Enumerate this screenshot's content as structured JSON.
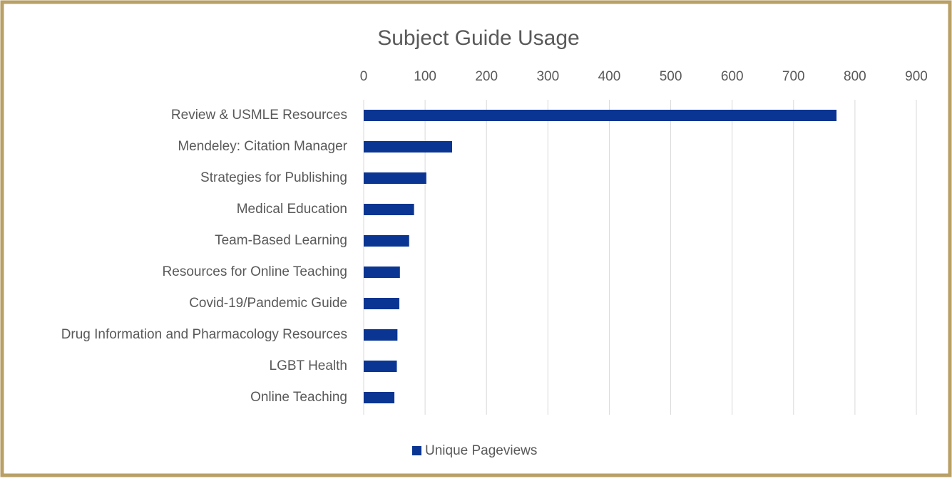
{
  "chart_data": {
    "type": "bar",
    "orientation": "horizontal",
    "title": "Subject Guide Usage",
    "categories": [
      "Review & USMLE Resources",
      "Mendeley: Citation Manager",
      "Strategies for Publishing",
      "Medical Education",
      "Team-Based Learning",
      "Resources for Online Teaching",
      "Covid-19/Pandemic Guide",
      "Drug Information and Pharmacology Resources",
      "LGBT Health",
      "Online Teaching"
    ],
    "series": [
      {
        "name": "Unique Pageviews",
        "color": "#0a3592",
        "values": [
          770,
          144,
          102,
          82,
          74,
          59,
          58,
          55,
          54,
          50
        ]
      }
    ],
    "xlim": [
      0,
      900
    ],
    "xticks": [
      0,
      100,
      200,
      300,
      400,
      500,
      600,
      700,
      800,
      900
    ],
    "grid": true,
    "legend": "bottom"
  }
}
